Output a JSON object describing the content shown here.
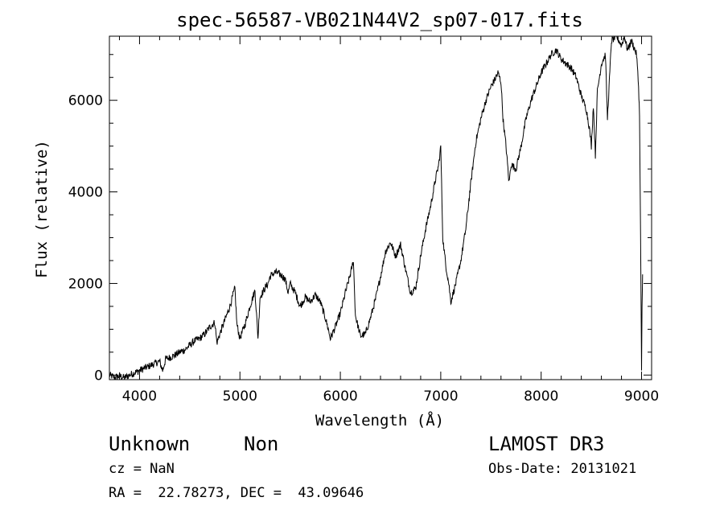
{
  "chart_data": {
    "type": "line",
    "title": "spec-56587-VB021N44V2_sp07-017.fits",
    "xlabel": "Wavelength (Å)",
    "ylabel": "Flux (relative)",
    "xlim": [
      3700,
      9100
    ],
    "ylim": [
      -100,
      7400
    ],
    "x_ticks": [
      4000,
      5000,
      6000,
      7000,
      8000,
      9000
    ],
    "y_ticks": [
      0,
      2000,
      4000,
      6000
    ],
    "grid": false,
    "series": [
      {
        "name": "flux",
        "x": [
          3700,
          3750,
          3800,
          3850,
          3900,
          3950,
          4000,
          4050,
          4100,
          4150,
          4200,
          4230,
          4260,
          4300,
          4350,
          4400,
          4450,
          4500,
          4550,
          4600,
          4650,
          4700,
          4750,
          4770,
          4800,
          4850,
          4900,
          4950,
          4970,
          5000,
          5050,
          5100,
          5150,
          5180,
          5200,
          5250,
          5280,
          5300,
          5350,
          5400,
          5450,
          5480,
          5500,
          5550,
          5600,
          5650,
          5700,
          5750,
          5800,
          5850,
          5880,
          5900,
          5950,
          6000,
          6050,
          6100,
          6130,
          6150,
          6200,
          6250,
          6300,
          6350,
          6400,
          6450,
          6500,
          6550,
          6600,
          6650,
          6700,
          6750,
          6800,
          6850,
          6900,
          6950,
          6980,
          7000,
          7020,
          7050,
          7080,
          7100,
          7150,
          7200,
          7250,
          7300,
          7350,
          7400,
          7450,
          7500,
          7550,
          7570,
          7600,
          7620,
          7650,
          7680,
          7700,
          7750,
          7800,
          7850,
          7900,
          7950,
          8000,
          8050,
          8100,
          8150,
          8200,
          8250,
          8300,
          8350,
          8400,
          8450,
          8480,
          8500,
          8520,
          8540,
          8560,
          8600,
          8640,
          8660,
          8700,
          8750,
          8800,
          8830,
          8860,
          8900,
          8950,
          8970,
          8980,
          8990,
          9000,
          9005,
          9010
        ],
        "y": [
          0,
          -50,
          -20,
          -60,
          0,
          50,
          100,
          150,
          200,
          250,
          300,
          100,
          350,
          380,
          430,
          500,
          550,
          650,
          750,
          800,
          900,
          1050,
          1150,
          700,
          900,
          1200,
          1500,
          1900,
          1100,
          800,
          1100,
          1500,
          1850,
          800,
          1700,
          1900,
          2000,
          2150,
          2250,
          2200,
          2100,
          1800,
          2000,
          1800,
          1500,
          1700,
          1600,
          1750,
          1600,
          1250,
          1000,
          800,
          1050,
          1350,
          1800,
          2200,
          2500,
          1300,
          850,
          900,
          1250,
          1650,
          2150,
          2700,
          2900,
          2600,
          2850,
          2300,
          1800,
          1900,
          2600,
          3200,
          3700,
          4300,
          4600,
          5000,
          3000,
          2400,
          2000,
          1600,
          2000,
          2500,
          3200,
          4200,
          5100,
          5600,
          6000,
          6300,
          6500,
          6600,
          6400,
          5600,
          5000,
          4200,
          4600,
          4500,
          5000,
          5600,
          6000,
          6300,
          6600,
          6800,
          7000,
          7100,
          6900,
          6800,
          6700,
          6500,
          6100,
          5800,
          5400,
          5000,
          5900,
          4800,
          6200,
          6800,
          7000,
          5600,
          7300,
          7400,
          7200,
          7400,
          7100,
          7300,
          7000,
          6300,
          5700,
          3000,
          100,
          1500,
          2200
        ]
      }
    ]
  },
  "info": {
    "class": "Unknown",
    "subclass": "Non",
    "survey": "LAMOST DR3",
    "cz": "cz = NaN",
    "obs_date": "Obs-Date: 20131021",
    "coords": "RA =  22.78273, DEC =  43.09646"
  }
}
